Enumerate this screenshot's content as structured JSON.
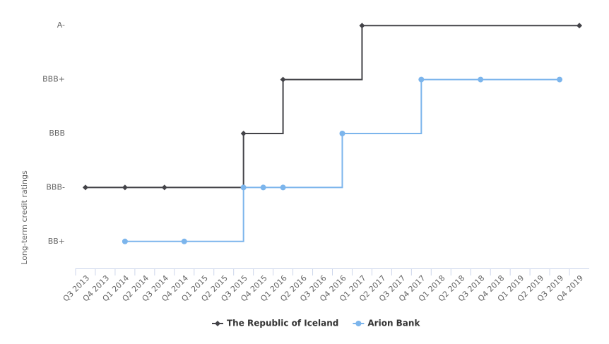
{
  "chart_data": {
    "type": "line",
    "step": true,
    "connect_nulls": true,
    "y_axis_label": "Long-term credit ratings",
    "categories": [
      "Q3 2013",
      "Q4 2013",
      "Q1 2014",
      "Q2 2014",
      "Q3 2014",
      "Q4 2014",
      "Q1 2015",
      "Q2 2015",
      "Q3 2015",
      "Q4 2015",
      "Q1 2016",
      "Q2 2016",
      "Q3 2016",
      "Q4 2016",
      "Q1 2017",
      "Q2 2017",
      "Q3 2017",
      "Q4 2017",
      "Q1 2018",
      "Q2 2018",
      "Q3 2018",
      "Q4 2018",
      "Q1 2019",
      "Q2 2019",
      "Q3 2019",
      "Q4 2019"
    ],
    "ylim": [
      -0.5,
      4.5
    ],
    "yticks": [
      {
        "value": 0,
        "label": "BB+"
      },
      {
        "value": 1,
        "label": "BBB-"
      },
      {
        "value": 2,
        "label": "BBB"
      },
      {
        "value": 3,
        "label": "BBB+"
      },
      {
        "value": 4,
        "label": "A-"
      }
    ],
    "series": [
      {
        "name": "The Republic of Iceland",
        "color": "#434348",
        "marker": "diamond",
        "values": [
          1,
          null,
          1,
          null,
          1,
          null,
          null,
          null,
          2,
          null,
          3,
          null,
          null,
          null,
          4,
          null,
          null,
          null,
          null,
          null,
          null,
          null,
          null,
          null,
          null,
          4
        ]
      },
      {
        "name": "Arion Bank",
        "color": "#7cb5ec",
        "marker": "circle",
        "values": [
          null,
          null,
          0,
          null,
          null,
          0,
          null,
          null,
          1,
          1,
          1,
          null,
          null,
          2,
          null,
          null,
          null,
          3,
          null,
          null,
          3,
          null,
          null,
          null,
          3,
          null
        ]
      }
    ]
  }
}
